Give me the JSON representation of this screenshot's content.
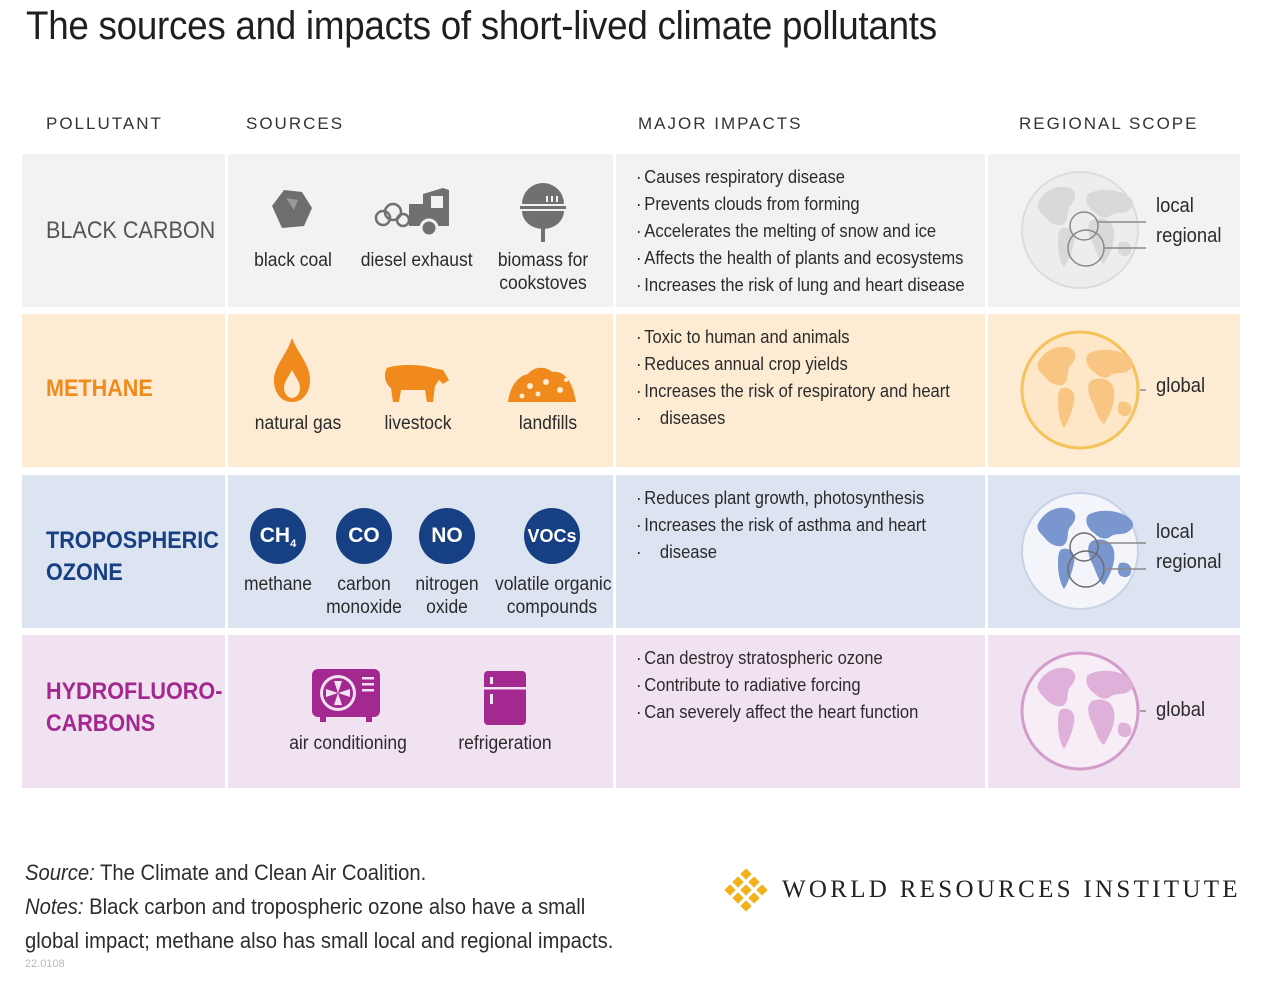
{
  "title": "The sources and impacts of short-lived climate pollutants",
  "headers": {
    "pollutant": "POLLUTANT",
    "sources": "SOURCES",
    "impacts": "MAJOR IMPACTS",
    "scope": "REGIONAL SCOPE"
  },
  "colors": {
    "black_carbon_bg": "#f2f2f2",
    "methane_bg": "#fdecd3",
    "ozone_bg": "#dde4f1",
    "hfc_bg": "#f0e2f0",
    "methane_accent": "#f08a1c",
    "ozone_accent": "#173f84",
    "hfc_accent": "#a3288f",
    "wri_logo": "#f3b21b"
  },
  "rows": [
    {
      "name": "BLACK CARBON",
      "sources": [
        {
          "label": "black coal",
          "icon": "coal-icon"
        },
        {
          "label": "diesel exhaust",
          "icon": "truck-exhaust-icon"
        },
        {
          "label_1": "biomass for",
          "label_2": "cookstoves",
          "icon": "grill-stove-icon"
        }
      ],
      "impacts": [
        "Causes respiratory disease",
        "Prevents clouds from forming",
        "Accelerates the melting of snow and ice",
        "Affects the health of plants and ecosystems",
        "Increases the risk of lung and heart disease"
      ],
      "scope": [
        "local",
        "regional"
      ]
    },
    {
      "name": "METHANE",
      "sources": [
        {
          "label": "natural gas",
          "icon": "flame-icon"
        },
        {
          "label": "livestock",
          "icon": "cow-icon"
        },
        {
          "label": "landfills",
          "icon": "landfill-icon"
        }
      ],
      "impacts": [
        "Toxic to human and animals",
        "Reduces annual crop yields",
        "Increases the risk of respiratory and heart",
        "diseases"
      ],
      "scope": [
        "global"
      ]
    },
    {
      "name_1": "TROPOSPHERIC",
      "name_2": "OZONE",
      "sources": [
        {
          "symbol": "CH",
          "subscript": "4",
          "label": "methane"
        },
        {
          "symbol": "CO",
          "label_1": "carbon",
          "label_2": "monoxide"
        },
        {
          "symbol": "NO",
          "label_1": "nitrogen",
          "label_2": "oxide"
        },
        {
          "symbol": "VOCs",
          "label_1": "volatile organic",
          "label_2": "compounds"
        }
      ],
      "impacts": [
        "Reduces plant growth, photosynthesis",
        "Increases the risk of asthma and heart",
        "disease"
      ],
      "scope": [
        "local",
        "regional"
      ]
    },
    {
      "name_1": "HYDROFLUORO-",
      "name_2": "CARBONS",
      "sources": [
        {
          "label": "air conditioning",
          "icon": "air-conditioner-icon"
        },
        {
          "label": "refrigeration",
          "icon": "refrigerator-icon"
        }
      ],
      "impacts": [
        "Can destroy stratospheric ozone",
        "Contribute to radiative forcing",
        "Can severely affect the heart function"
      ],
      "scope": [
        "global"
      ]
    }
  ],
  "footer": {
    "source_label": "Source:",
    "source_text": " The Climate and Clean Air Coalition.",
    "notes_label": "Notes:",
    "notes_line1": " Black carbon and tropospheric ozone also have a small",
    "notes_line2": "global impact; methane also has small local and regional impacts.",
    "code": "22.0108"
  },
  "logo": {
    "name": "WORLD RESOURCES INSTITUTE"
  }
}
